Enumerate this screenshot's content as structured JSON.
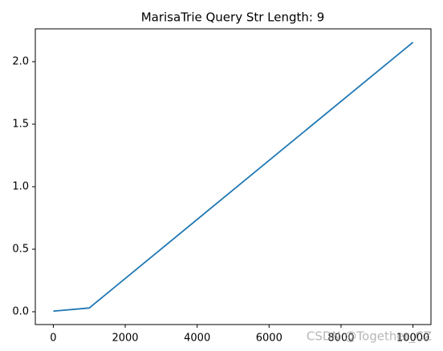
{
  "chart_data": {
    "type": "line",
    "title": "MarisaTrie Query Str Length: 9",
    "x": [
      0,
      1000,
      10000
    ],
    "values": [
      0.005,
      0.03,
      2.155
    ],
    "color": "#1f77b4",
    "xlim": [
      -500,
      10500
    ],
    "xticks": [
      0,
      2000,
      4000,
      6000,
      8000,
      10000
    ],
    "ylim": [
      -0.1025,
      2.2625
    ],
    "yticks": [
      {
        "value": 0,
        "label": "0.0"
      },
      {
        "value": 0.5,
        "label": "0.5"
      },
      {
        "value": 1,
        "label": "1.0"
      },
      {
        "value": 1.5,
        "label": "1.5"
      },
      {
        "value": 2,
        "label": "2.0"
      }
    ],
    "watermark": "CSDN @Together_CZ"
  }
}
